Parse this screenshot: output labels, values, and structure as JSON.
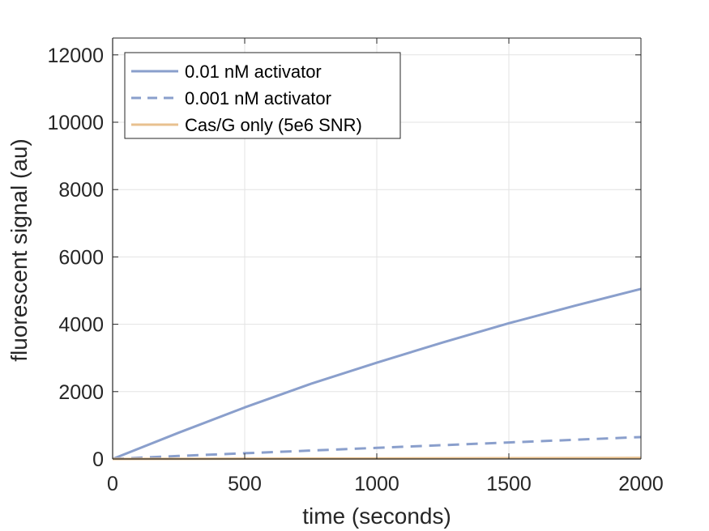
{
  "chart_data": {
    "type": "line",
    "title": "",
    "xlabel": "time (seconds)",
    "ylabel": "fluorescent signal (au)",
    "xlim": [
      0,
      2000
    ],
    "ylim": [
      0,
      12500
    ],
    "xticks": [
      0,
      500,
      1000,
      1500,
      2000
    ],
    "yticks": [
      0,
      2000,
      4000,
      6000,
      8000,
      10000,
      12000
    ],
    "x_tick_labels": [
      "0",
      "500",
      "1000",
      "1500",
      "2000"
    ],
    "y_tick_labels": [
      "0",
      "2000",
      "4000",
      "6000",
      "8000",
      "10000",
      "12000"
    ],
    "grid": true,
    "legend_position": "top-left",
    "series": [
      {
        "name": "0.01 nM activator",
        "color": "#8a9fcc",
        "style": "solid",
        "x": [
          0,
          250,
          500,
          750,
          1000,
          1250,
          1500,
          1750,
          2000
        ],
        "y": [
          0,
          780,
          1530,
          2230,
          2860,
          3460,
          4030,
          4550,
          5050
        ]
      },
      {
        "name": "0.001 nM activator",
        "color": "#8a9fcc",
        "style": "dashed",
        "x": [
          0,
          250,
          500,
          750,
          1000,
          1250,
          1500,
          1750,
          2000
        ],
        "y": [
          0,
          90,
          170,
          250,
          330,
          410,
          490,
          570,
          650
        ]
      },
      {
        "name": "Cas/G only (5e6 SNR)",
        "color": "#e8c18f",
        "style": "solid",
        "x": [
          0,
          500,
          1000,
          1500,
          2000
        ],
        "y": [
          0,
          8,
          16,
          24,
          32
        ]
      }
    ]
  }
}
